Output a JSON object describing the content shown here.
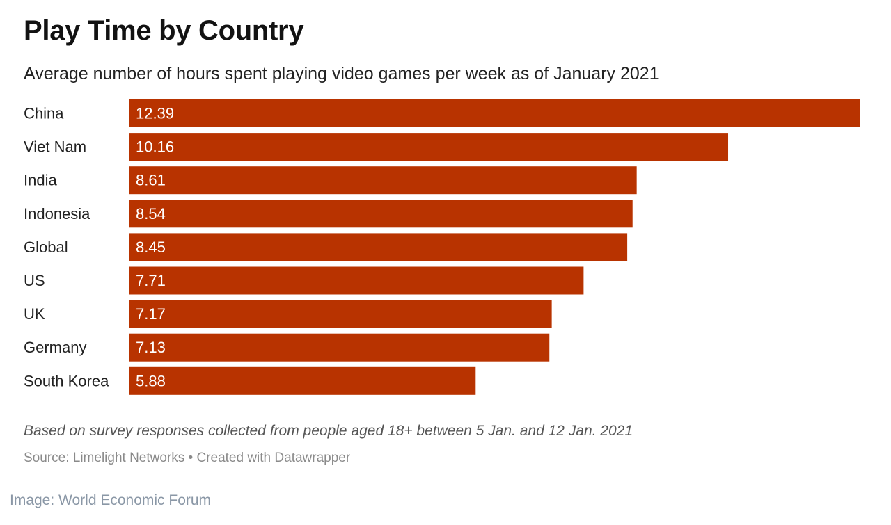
{
  "chart": {
    "title": "Play Time by Country",
    "subtitle": "Average number of hours spent playing video games per week as of January 2021",
    "notes": "Based on survey responses collected from people aged 18+ between 5 Jan. and 12 Jan. 2021",
    "source": "Source: Limelight Networks • Created with Datawrapper"
  },
  "credit": "Image: World Economic Forum",
  "chart_data": {
    "type": "bar",
    "orientation": "horizontal",
    "title": "Play Time by Country",
    "subtitle": "Average number of hours spent playing video games per week as of January 2021",
    "categories": [
      "China",
      "Viet Nam",
      "India",
      "Indonesia",
      "Global",
      "US",
      "UK",
      "Germany",
      "South Korea"
    ],
    "values": [
      12.39,
      10.16,
      8.61,
      8.54,
      8.45,
      7.71,
      7.17,
      7.13,
      5.88
    ],
    "value_labels": [
      "12.39",
      "10.16",
      "8.61",
      "8.54",
      "8.45",
      "7.71",
      "7.17",
      "7.13",
      "5.88"
    ],
    "xlim": [
      0,
      12.39
    ],
    "bar_color": "#b83300",
    "label_color": "#ffffff",
    "grid": false,
    "legend": "none"
  }
}
